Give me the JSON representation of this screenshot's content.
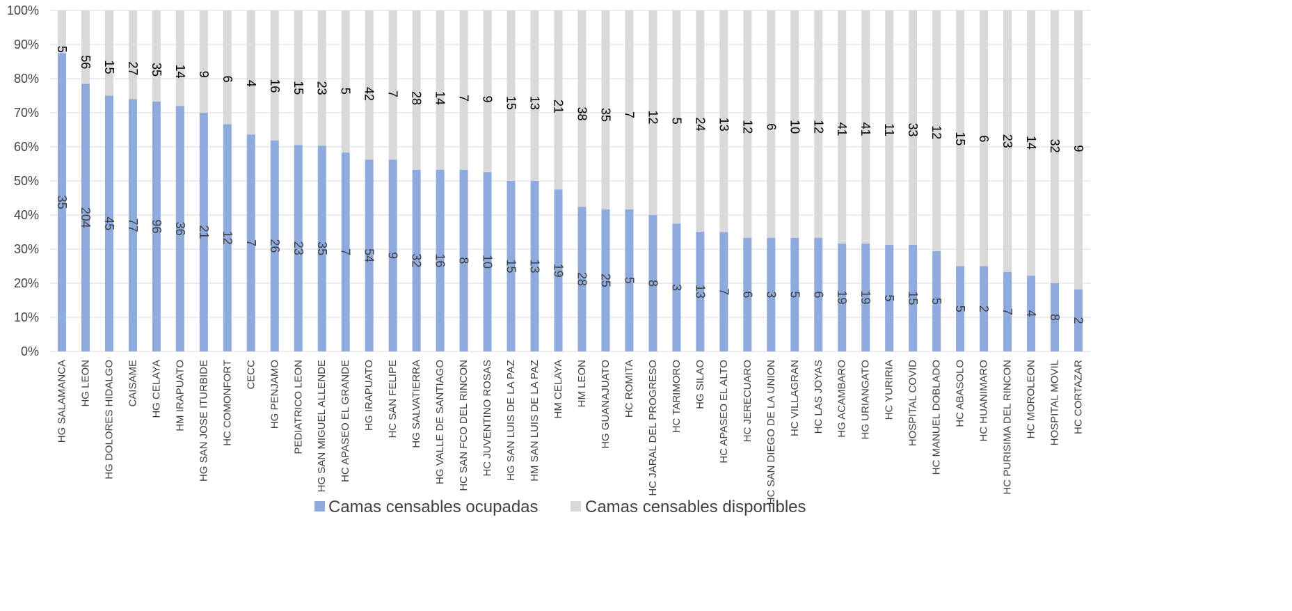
{
  "chart_data": {
    "type": "bar",
    "stacked": "percent",
    "categories": [
      "HG SALAMANCA",
      "HG LEON",
      "HG DOLORES HIDALGO",
      "CAISAME",
      "HG CELAYA",
      "HM IRAPUATO",
      "HG SAN JOSE ITURBIDE",
      "HC COMONFORT",
      "CECC",
      "HG PENJAMO",
      "PEDIATRICO LEON",
      "HG SAN MIGUEL ALLENDE",
      "HC APASEO EL GRANDE",
      "HG IRAPUATO",
      "HC SAN FELIPE",
      "HG SALVATIERRA",
      "HG VALLE DE SANTIAGO",
      "HC SAN FCO DEL RINCON",
      "HC JUVENTINO ROSAS",
      "HG SAN LUIS DE LA PAZ",
      "HM SAN LUIS DE LA PAZ",
      "HM CELAYA",
      "HM LEON",
      "HG GUANAJUATO",
      "HC ROMITA",
      "HC JARAL DEL PROGRESO",
      "HC TARIMORO",
      "HG SILAO",
      "HC APASEO EL ALTO",
      "HC JERECUARO",
      "HC SAN DIEGO DE LA UNION",
      "HC VILLAGRAN",
      "HC LAS JOYAS",
      "HG ACAMBARO",
      "HG URIANGATO",
      "HC YURIRIA",
      "HOSPITAL COVID",
      "HC MANUEL DOBLADO",
      "HC ABASOLO",
      "HC HUANIMARO",
      "HC PURISIMA DEL RINCON",
      "HC MOROLEON",
      "HOSPITAL MOVIL",
      "HC CORTAZAR"
    ],
    "series": [
      {
        "name": "Camas censables ocupadas",
        "color": "#8faadc",
        "values": [
          35,
          204,
          45,
          77,
          96,
          36,
          21,
          12,
          7,
          26,
          23,
          35,
          7,
          54,
          9,
          32,
          16,
          8,
          10,
          15,
          13,
          19,
          28,
          25,
          5,
          8,
          3,
          13,
          7,
          6,
          3,
          5,
          6,
          19,
          19,
          5,
          15,
          5,
          5,
          2,
          7,
          4,
          8,
          2
        ]
      },
      {
        "name": "Camas censables disponibles",
        "color": "#d9d9d9",
        "values": [
          5,
          56,
          15,
          27,
          35,
          14,
          9,
          6,
          4,
          16,
          15,
          23,
          5,
          42,
          7,
          28,
          14,
          7,
          9,
          15,
          13,
          21,
          38,
          35,
          7,
          12,
          5,
          24,
          13,
          12,
          6,
          10,
          12,
          41,
          41,
          11,
          33,
          12,
          15,
          6,
          23,
          14,
          32,
          9
        ]
      }
    ],
    "y_ticks": [
      "0%",
      "10%",
      "20%",
      "30%",
      "40%",
      "50%",
      "60%",
      "70%",
      "80%",
      "90%",
      "100%"
    ],
    "ylim": [
      0,
      100
    ],
    "grid": true,
    "legend_position": "bottom",
    "title": "",
    "xlabel": "",
    "ylabel": ""
  }
}
